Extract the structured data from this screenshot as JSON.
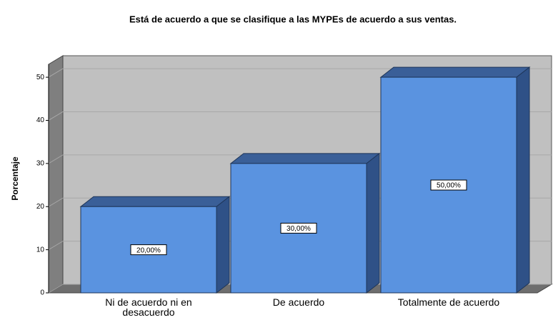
{
  "chart_data": {
    "type": "bar3d",
    "title": "Está de acuerdo a que se clasifique a las MYPEs de acuerdo a sus ventas.",
    "y_label": "Porcentaje",
    "categories": [
      "Ni de acuerdo ni en desacuerdo",
      "De acuerdo",
      "Totalmente de acuerdo"
    ],
    "values": [
      20,
      30,
      50
    ],
    "value_labels": [
      "20,00%",
      "30,00%",
      "50,00%"
    ],
    "color": "#5a93e0",
    "ylim": [
      0,
      53
    ],
    "yticks": [
      0,
      10,
      20,
      30,
      40,
      50
    ],
    "grid": true
  }
}
